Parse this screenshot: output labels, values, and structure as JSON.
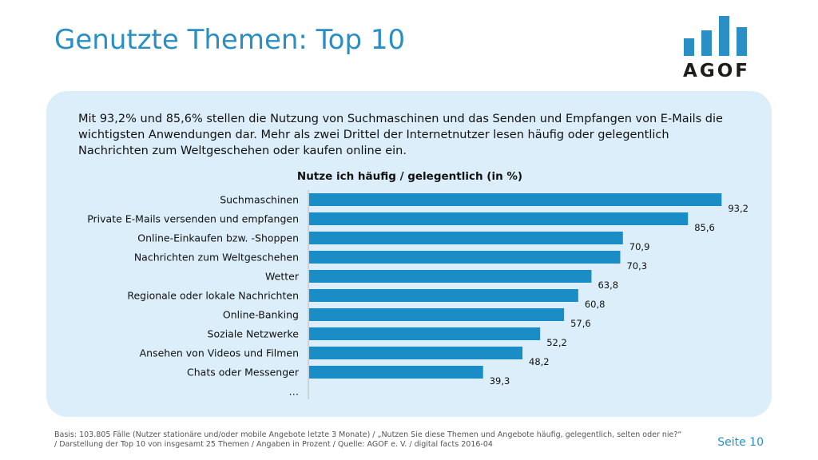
{
  "header": {
    "title": "Genutzte Themen: Top 10"
  },
  "logo": {
    "text": "AGOF",
    "color": "#2a8fc4"
  },
  "intro": {
    "text": "Mit 93,2% und 85,6% stellen die Nutzung von Suchmaschinen und das Senden und Empfangen von E-Mails die wichtigsten Anwendungen dar. Mehr als zwei Drittel der Internetnutzer lesen häufig oder gelegentlich Nachrichten zum Weltgeschehen oder kaufen online ein."
  },
  "chart_data": {
    "type": "bar",
    "orientation": "horizontal",
    "title": "Nutze ich häufig / gelegentlich (in %)",
    "categories": [
      "Suchmaschinen",
      "Private E-Mails versenden und empfangen",
      "Online-Einkaufen bzw. -Shoppen",
      "Nachrichten zum Weltgeschehen",
      "Wetter",
      "Regionale oder lokale Nachrichten",
      "Online-Banking",
      "Soziale Netzwerke",
      "Ansehen von Videos und Filmen",
      "Chats oder Messenger",
      "…"
    ],
    "values": [
      93.2,
      85.6,
      70.9,
      70.3,
      63.8,
      60.8,
      57.6,
      52.2,
      48.2,
      39.3,
      null
    ],
    "value_labels": [
      "93,2",
      "85,6",
      "70,9",
      "70,3",
      "63,8",
      "60,8",
      "57,6",
      "52,2",
      "48,2",
      "39,3",
      ""
    ],
    "xlim": [
      0,
      100
    ],
    "bar_color": "#1a8cc6",
    "grid": false
  },
  "footer": {
    "note": "Basis: 103.805 Fälle (Nutzer stationäre und/oder mobile Angebote letzte 3 Monate) / „Nutzen Sie diese Themen und Angebote häufig, gelegentlich, selten oder nie?“ / Darstellung der Top 10 von insgesamt 25 Themen / Angaben in Prozent / Quelle: AGOF e. V. / digital facts 2016-04",
    "page": "Seite 10"
  }
}
